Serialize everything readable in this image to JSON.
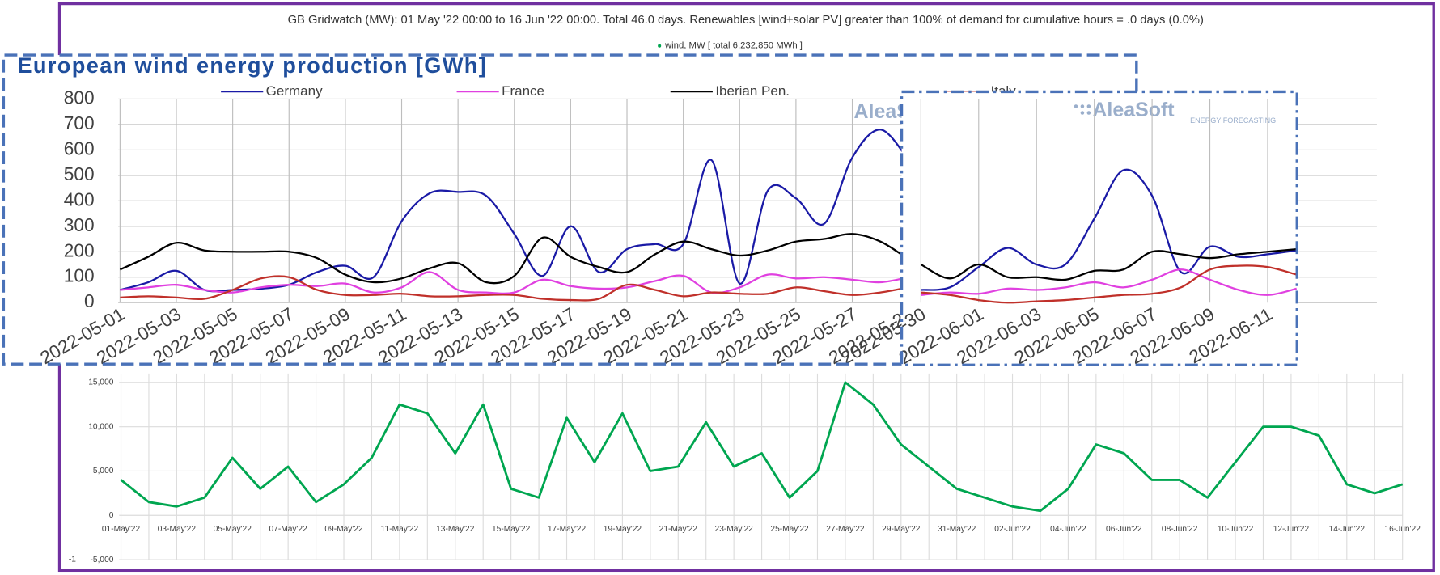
{
  "chart_data": [
    {
      "type": "line",
      "title": "GB Gridwatch (MW):   01 May '22 00:00 to 16 Jun '22 00:00.  Total 46.0 days.  Renewables [wind+solar PV] greater than 100% of demand for cumulative  hours = .0 days (0.0%)",
      "annotation": "-1",
      "categories": [
        "01-May'22",
        null,
        "03-May'22",
        null,
        "05-May'22",
        null,
        "07-May'22",
        null,
        "09-May'22",
        null,
        "11-May'22",
        null,
        "13-May'22",
        null,
        "15-May'22",
        null,
        "17-May'22",
        null,
        "19-May'22",
        null,
        "21-May'22",
        null,
        "23-May'22",
        null,
        "25-May'22",
        null,
        "27-May'22",
        null,
        "29-May'22",
        null,
        "31-May'22",
        null,
        "02-Jun'22",
        null,
        "04-Jun'22",
        null,
        "06-Jun'22",
        null,
        "08-Jun'22",
        null,
        "10-Jun'22",
        null,
        "12-Jun'22",
        null,
        "14-Jun'22",
        null,
        "16-Jun'22"
      ],
      "series": [
        {
          "name": "wind, MW  [ total 6,232,850 MWh ]",
          "color": "#00a650",
          "values": [
            4000,
            1500,
            1000,
            2000,
            6500,
            3000,
            5500,
            1500,
            3500,
            6500,
            12500,
            11500,
            7000,
            12500,
            3000,
            2000,
            11000,
            6000,
            11500,
            5000,
            5500,
            10500,
            5500,
            7000,
            2000,
            5000,
            15000,
            12500,
            8000,
            5500,
            3000,
            2000,
            1000,
            500,
            3000,
            8000,
            7000,
            4000,
            4000,
            2000,
            6000,
            10000,
            10000,
            9000,
            3500,
            2500,
            3500
          ]
        }
      ],
      "ylim": [
        -5000,
        16000
      ],
      "yticks": [
        {
          "value": -5000,
          "label": "-5,000"
        },
        0,
        {
          "value": 5000,
          "label": "5,000"
        },
        {
          "value": 10000,
          "label": "10,000"
        },
        {
          "value": 15000,
          "label": "15,000"
        }
      ],
      "grid": true
    },
    {
      "type": "line",
      "title": "European wind energy production [GWh]",
      "watermark": "AleaSoft",
      "categories": [
        "2022-05-01",
        null,
        "2022-05-03",
        null,
        "2022-05-05",
        null,
        "2022-05-07",
        null,
        "2022-05-09",
        null,
        "2022-05-11",
        null,
        "2022-05-13",
        null,
        "2022-05-15",
        null,
        "2022-05-17",
        null,
        "2022-05-19",
        null,
        "2022-05-21",
        null,
        "2022-05-23",
        null,
        "2022-05-25",
        null,
        "2022-05-27",
        null,
        "2022-05-29"
      ],
      "series": [
        {
          "name": "Germany",
          "color": "#1a1aa6",
          "values": [
            50,
            80,
            125,
            50,
            50,
            55,
            70,
            120,
            145,
            100,
            320,
            430,
            435,
            420,
            270,
            105,
            300,
            120,
            210,
            230,
            230,
            560,
            75,
            440,
            410,
            310,
            570,
            680,
            560
          ]
        },
        {
          "name": "France",
          "color": "#e040e0",
          "values": [
            50,
            60,
            70,
            50,
            40,
            60,
            70,
            65,
            75,
            40,
            60,
            120,
            50,
            40,
            40,
            90,
            65,
            55,
            60,
            85,
            105,
            40,
            60,
            110,
            95,
            100,
            90,
            80,
            100
          ]
        },
        {
          "name": "Iberian Pen.",
          "color": "#000000",
          "values": [
            130,
            180,
            235,
            205,
            200,
            200,
            200,
            175,
            110,
            80,
            95,
            135,
            155,
            80,
            105,
            255,
            180,
            140,
            120,
            190,
            240,
            210,
            185,
            205,
            240,
            250,
            270,
            240,
            170
          ]
        },
        {
          "name": "Italy",
          "color": "#c0302a",
          "values": [
            20,
            25,
            20,
            15,
            50,
            95,
            100,
            50,
            30,
            30,
            35,
            25,
            25,
            30,
            30,
            15,
            10,
            15,
            70,
            50,
            25,
            40,
            35,
            35,
            60,
            45,
            30,
            40,
            60
          ]
        }
      ],
      "ylim": [
        0,
        800
      ],
      "yticks": [
        0,
        100,
        200,
        300,
        400,
        500,
        600,
        700,
        800
      ],
      "grid": true
    },
    {
      "type": "line",
      "watermark": "AleaSoft",
      "watermark_sub": "ENERGY FORECASTING",
      "categories": [
        "2022-05-30",
        null,
        "2022-06-01",
        null,
        "2022-06-03",
        null,
        "2022-06-05",
        null,
        "2022-06-07",
        null,
        "2022-06-09",
        null,
        "2022-06-11",
        null
      ],
      "series": [
        {
          "color": "#1a1aa6",
          "values": [
            50,
            60,
            140,
            215,
            150,
            150,
            330,
            520,
            420,
            120,
            220,
            180,
            190,
            205
          ]
        },
        {
          "color": "#e040e0",
          "values": [
            30,
            40,
            35,
            55,
            50,
            60,
            80,
            60,
            90,
            130,
            90,
            50,
            30,
            55
          ]
        },
        {
          "color": "#000000",
          "values": [
            150,
            95,
            150,
            100,
            100,
            90,
            125,
            130,
            200,
            190,
            175,
            190,
            200,
            210
          ]
        },
        {
          "color": "#c0302a",
          "values": [
            40,
            30,
            10,
            0,
            5,
            10,
            20,
            30,
            35,
            60,
            130,
            145,
            140,
            110
          ]
        }
      ],
      "ylim": [
        0,
        800
      ]
    }
  ]
}
